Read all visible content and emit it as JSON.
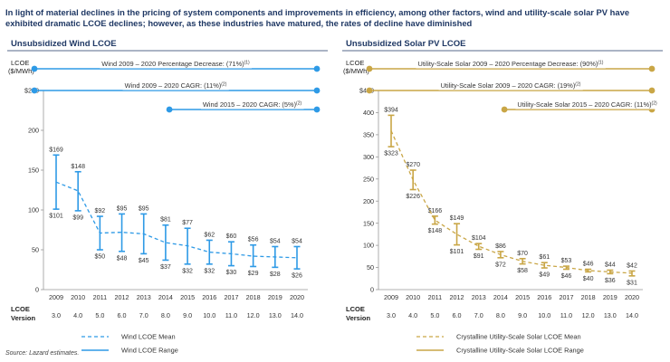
{
  "headline": "In light of material declines in the pricing of system components and improvements in efficiency, among other factors, wind and utility-scale solar PV have exhibited dramatic LCOE declines; however, as these industries have matured, the rates of decline have diminished",
  "source": "Source: Lazard estimates.",
  "chart_data": [
    {
      "type": "line",
      "title": "Unsubsidized Wind LCOE",
      "ylabel": "LCOE ($/MWh)",
      "ylim": [
        0,
        250
      ],
      "yticks": [
        0,
        50,
        100,
        150,
        200,
        250
      ],
      "yticklabels": [
        "0",
        "50",
        "100",
        "150",
        "200",
        "$250"
      ],
      "color": "#2e9ae6",
      "categories": [
        "2009",
        "2010",
        "2011",
        "2012",
        "2013",
        "2014",
        "2015",
        "2016",
        "2017",
        "2018",
        "2019",
        "2020"
      ],
      "version_label": "LCOE Version",
      "versions": [
        "3.0",
        "4.0",
        "5.0",
        "6.0",
        "7.0",
        "8.0",
        "9.0",
        "10.0",
        "11.0",
        "12.0",
        "13.0",
        "14.0"
      ],
      "series": [
        {
          "name": "Wind LCOE Mean",
          "style": "dashed",
          "values": [
            135,
            124,
            71,
            72,
            70,
            59,
            55,
            47,
            45,
            42,
            41,
            40
          ]
        },
        {
          "name": "Wind LCOE Range",
          "style": "range",
          "high": [
            169,
            148,
            92,
            95,
            95,
            81,
            77,
            62,
            60,
            56,
            54,
            54
          ],
          "low": [
            101,
            99,
            50,
            48,
            45,
            37,
            32,
            32,
            30,
            29,
            28,
            26
          ]
        }
      ],
      "high_labels": [
        "$169",
        "$148",
        "$92",
        "$95",
        "$95",
        "$81",
        "$77",
        "$62",
        "$60",
        "$56",
        "$54",
        "$54"
      ],
      "low_labels": [
        "$101",
        "$99",
        "$50",
        "$48",
        "$45",
        "$37",
        "$32",
        "$32",
        "$30",
        "$29",
        "$28",
        "$26"
      ],
      "annotations": [
        {
          "text": "Wind 2009 – 2020 Percentage Decrease: (71%)",
          "sup": "(1)",
          "from": 0,
          "to": 11
        },
        {
          "text": "Wind 2009 – 2020 CAGR: (11%)",
          "sup": "(2)",
          "from": 0,
          "to": 11
        },
        {
          "text": "Wind 2015 – 2020 CAGR: (5%)",
          "sup": "(2)",
          "from": 6,
          "to": 11
        }
      ]
    },
    {
      "type": "line",
      "title": "Unsubsidized Solar PV LCOE",
      "ylabel": "LCOE ($/MWh)",
      "ylim": [
        0,
        450
      ],
      "yticks": [
        0,
        50,
        100,
        150,
        200,
        250,
        300,
        350,
        400,
        450
      ],
      "yticklabels": [
        "0",
        "50",
        "100",
        "150",
        "200",
        "250",
        "300",
        "350",
        "400",
        "$450"
      ],
      "color": "#c9a646",
      "categories": [
        "2009",
        "2010",
        "2011",
        "2012",
        "2013",
        "2014",
        "2015",
        "2016",
        "2017",
        "2018",
        "2019",
        "2020"
      ],
      "version_label": "LCOE Version",
      "versions": [
        "3.0",
        "4.0",
        "5.0",
        "6.0",
        "7.0",
        "8.0",
        "9.0",
        "10.0",
        "11.0",
        "12.0",
        "13.0",
        "14.0"
      ],
      "series": [
        {
          "name": "Crystalline Utility-Scale Solar LCOE Mean",
          "style": "dashed",
          "values": [
            359,
            248,
            157,
            125,
            98,
            79,
            64,
            55,
            50,
            43,
            40,
            37
          ]
        },
        {
          "name": "Crystalline Utility-Scale Solar LCOE Range",
          "style": "range",
          "high": [
            394,
            270,
            166,
            149,
            104,
            86,
            70,
            61,
            53,
            46,
            44,
            42
          ],
          "low": [
            323,
            226,
            148,
            101,
            91,
            72,
            58,
            49,
            46,
            40,
            36,
            31
          ]
        }
      ],
      "high_labels": [
        "$394",
        "$270",
        "$166",
        "$149",
        "$104",
        "$86",
        "$70",
        "$61",
        "$53",
        "$46",
        "$44",
        "$42"
      ],
      "low_labels": [
        "$323",
        "$226",
        "$148",
        "$101",
        "$91",
        "$72",
        "$58",
        "$49",
        "$46",
        "$40",
        "$36",
        "$31"
      ],
      "annotations": [
        {
          "text": "Utility-Scale Solar 2009 – 2020 Percentage Decrease: (90%)",
          "sup": "(1)",
          "from": 0,
          "to": 11
        },
        {
          "text": "Utility-Scale Solar 2009 – 2020 CAGR: (19%)",
          "sup": "(2)",
          "from": 0,
          "to": 11
        },
        {
          "text": "Utility-Scale Solar 2015 – 2020 CAGR: (11%)",
          "sup": "(2)",
          "from": 6,
          "to": 11
        }
      ]
    }
  ]
}
